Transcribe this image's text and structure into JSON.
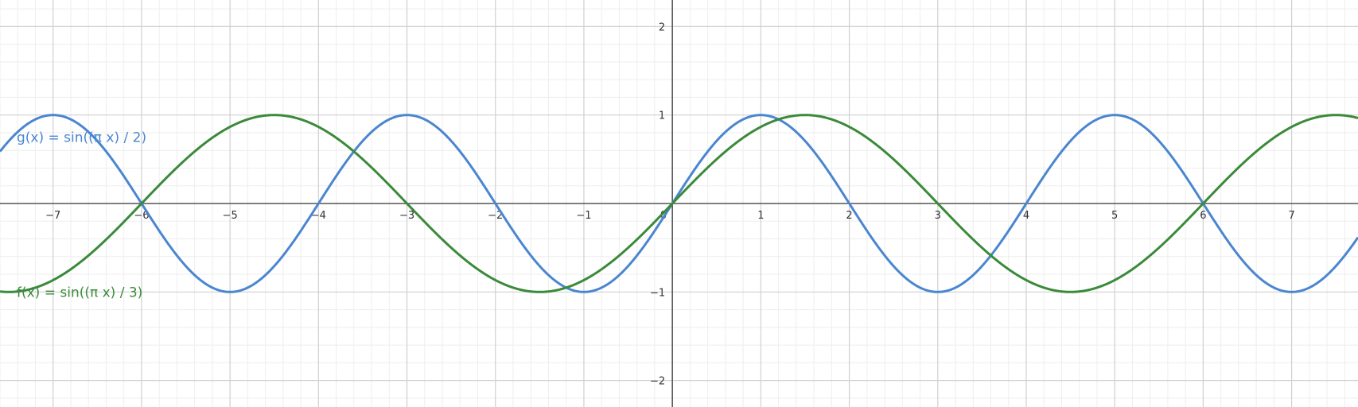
{
  "chart_data": {
    "type": "line",
    "xlim": [
      -7.6,
      7.75
    ],
    "ylim": [
      -2.3,
      2.3
    ],
    "grid": true,
    "minor_grid": true,
    "x_ticks": [
      -7,
      -6,
      -5,
      -4,
      -3,
      -2,
      -1,
      1,
      2,
      3,
      4,
      5,
      6,
      7
    ],
    "y_ticks": [
      -2,
      -1,
      1,
      2
    ],
    "x_tick_labels": [
      "−7",
      "−6",
      "−5",
      "−4",
      "−3",
      "−2",
      "−1",
      "1",
      "2",
      "3",
      "4",
      "5",
      "6",
      "7"
    ],
    "y_tick_labels": [
      "−2",
      "−1",
      "1",
      "2"
    ],
    "origin_label": "0",
    "series": [
      {
        "key": "g",
        "name": "g(x) = sin((π x) / 2)",
        "period_divisor": 2,
        "color": "#4a86d0",
        "label_anchor": [
          -7.6,
          0.75
        ]
      },
      {
        "key": "f",
        "name": "f(x) = sin((π x) / 3)",
        "period_divisor": 3,
        "color": "#3a8a3a",
        "label_anchor": [
          -7.6,
          -1.0
        ]
      }
    ]
  }
}
